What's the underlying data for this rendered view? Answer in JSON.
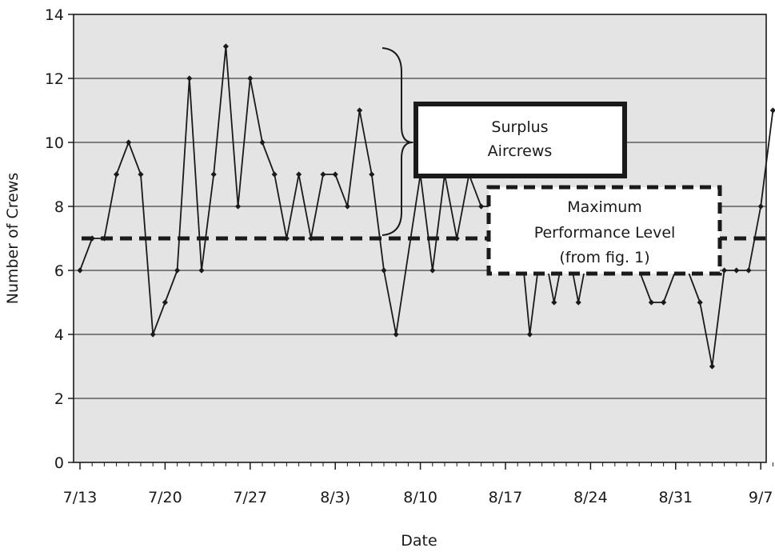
{
  "chart_data": {
    "type": "line",
    "title": "",
    "xlabel": "Date",
    "ylabel": "Number of Crews",
    "ylim": [
      0,
      14
    ],
    "yticks": [
      0,
      2,
      4,
      6,
      8,
      10,
      12,
      14
    ],
    "x_tick_labels": [
      "7/13",
      "7/20",
      "7/27",
      "8/3)",
      "8/10",
      "8/17",
      "8/24",
      "8/31",
      "9/7"
    ],
    "grid": true,
    "plot_background": "#e4e4e4",
    "line_color": "#1a1a1a",
    "series": [
      {
        "values": [
          [
            0,
            6
          ],
          [
            1,
            7
          ],
          [
            2,
            7
          ],
          [
            3,
            9
          ],
          [
            4,
            10
          ],
          [
            5,
            9
          ],
          [
            6,
            4
          ],
          [
            7,
            5
          ],
          [
            8,
            6
          ],
          [
            9,
            12
          ],
          [
            10,
            6
          ],
          [
            11,
            9
          ],
          [
            12,
            13
          ],
          [
            13,
            8
          ],
          [
            14,
            12
          ],
          [
            15,
            10
          ],
          [
            16,
            9
          ],
          [
            17,
            7
          ],
          [
            18,
            9
          ],
          [
            19,
            7
          ],
          [
            20,
            9
          ],
          [
            21,
            9
          ],
          [
            22,
            8
          ],
          [
            23,
            11
          ],
          [
            24,
            9
          ],
          [
            25,
            6
          ],
          [
            26,
            4
          ],
          [
            28,
            9
          ],
          [
            29,
            6
          ],
          [
            30,
            9
          ],
          [
            31,
            7
          ],
          [
            32,
            9
          ],
          [
            33,
            8
          ],
          [
            36,
            8
          ],
          [
            37,
            4
          ],
          [
            38,
            7
          ],
          [
            39,
            5
          ],
          [
            40,
            7
          ],
          [
            41,
            5
          ],
          [
            42,
            7
          ],
          [
            44,
            8
          ],
          [
            45,
            8
          ],
          [
            46,
            6
          ],
          [
            47,
            5
          ],
          [
            48,
            5
          ],
          [
            49,
            6
          ],
          [
            50,
            6
          ],
          [
            51,
            5
          ],
          [
            52,
            3
          ],
          [
            53,
            6
          ],
          [
            54,
            6
          ],
          [
            55,
            6
          ],
          [
            56,
            8
          ],
          [
            57,
            11
          ]
        ]
      }
    ],
    "reference_line": {
      "value": 7,
      "style": "dashed"
    },
    "annotations": [
      {
        "text": [
          "Surplus",
          "Aircrews"
        ],
        "box": "solid",
        "brace_range": [
          7,
          13
        ]
      },
      {
        "text": [
          "Maximum",
          "Performance Level",
          "(from fig. 1)"
        ],
        "box": "dashed"
      }
    ]
  }
}
